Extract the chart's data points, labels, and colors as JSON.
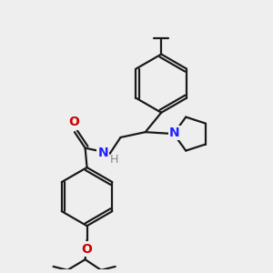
{
  "bg_color": "#eeeeee",
  "bond_color": "#1a1a1a",
  "bond_width": 1.6,
  "atom_colors": {
    "N": "#2020ff",
    "O": "#cc0000",
    "H": "#888888"
  },
  "font_size_atom": 10,
  "font_size_h": 9
}
